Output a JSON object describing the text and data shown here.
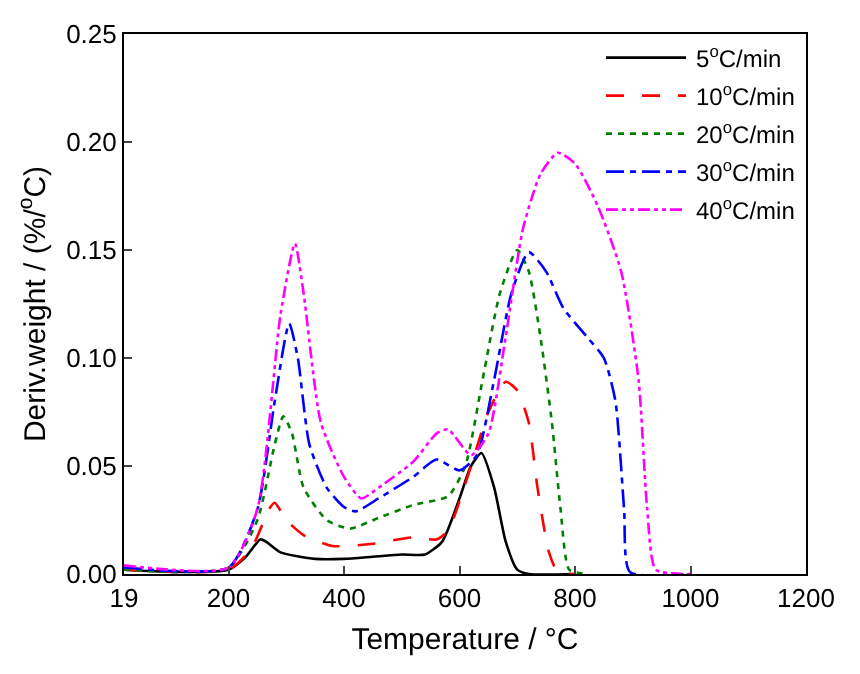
{
  "chart_data": {
    "type": "line",
    "xlabel": "Temperature / °C",
    "ylabel": "Deriv.weight / (%/$^{o}$C)",
    "xlim": [
      19,
      1200
    ],
    "xticks": [
      19,
      200,
      400,
      600,
      800,
      1000,
      1200
    ],
    "ylim": [
      0,
      0.25
    ],
    "yticks": [
      {
        "value": 0,
        "label": "0.00"
      },
      {
        "value": 0.05,
        "label": "0.05"
      },
      {
        "value": 0.1,
        "label": "0.10"
      },
      {
        "value": 0.15,
        "label": "0.15"
      },
      {
        "value": 0.2,
        "label": "0.20"
      },
      {
        "value": 0.25,
        "label": "0.25"
      }
    ],
    "legend": "top right",
    "marker": "none",
    "series": [
      {
        "name": "5$^{o}$C/min",
        "color": "#000000",
        "line_style": "solid",
        "x": [
          19,
          100,
          200,
          230,
          255,
          265,
          290,
          350,
          400,
          450,
          500,
          540,
          570,
          600,
          620,
          638,
          660,
          680,
          700,
          720,
          800
        ],
        "values": [
          0.002,
          0.001,
          0.002,
          0.008,
          0.016,
          0.015,
          0.01,
          0.007,
          0.007,
          0.008,
          0.009,
          0.009,
          0.015,
          0.035,
          0.05,
          0.056,
          0.04,
          0.015,
          0.002,
          0,
          0
        ]
      },
      {
        "name": "10$^{o}$C/min",
        "color": "#ff0000",
        "line_style": "dashed",
        "x": [
          19,
          200,
          240,
          270,
          280,
          300,
          330,
          380,
          450,
          520,
          560,
          580,
          620,
          650,
          680,
          700,
          720,
          735,
          755,
          770,
          800
        ],
        "values": [
          0.002,
          0.002,
          0.012,
          0.03,
          0.033,
          0.025,
          0.018,
          0.013,
          0.014,
          0.017,
          0.016,
          0.02,
          0.05,
          0.075,
          0.089,
          0.085,
          0.07,
          0.04,
          0.01,
          0.001,
          0
        ]
      },
      {
        "name": "20$^{o}$C/min",
        "color": "#008000",
        "line_style": "dotted",
        "x": [
          19,
          200,
          250,
          280,
          295,
          310,
          330,
          370,
          410,
          460,
          520,
          580,
          610,
          640,
          670,
          700,
          720,
          740,
          760,
          775,
          790,
          820
        ],
        "values": [
          0.002,
          0.003,
          0.025,
          0.06,
          0.073,
          0.065,
          0.04,
          0.025,
          0.021,
          0.026,
          0.032,
          0.036,
          0.05,
          0.09,
          0.13,
          0.15,
          0.14,
          0.11,
          0.07,
          0.03,
          0.002,
          0
        ]
      },
      {
        "name": "30$^{o}$C/min",
        "color": "#0000ff",
        "line_style": "dashdot",
        "x": [
          19,
          200,
          250,
          280,
          305,
          320,
          340,
          370,
          400,
          420,
          460,
          520,
          560,
          600,
          630,
          660,
          690,
          720,
          750,
          780,
          820,
          850,
          870,
          885,
          895,
          1000
        ],
        "values": [
          0.003,
          0.003,
          0.03,
          0.08,
          0.116,
          0.1,
          0.06,
          0.04,
          0.031,
          0.029,
          0.035,
          0.045,
          0.053,
          0.048,
          0.055,
          0.09,
          0.13,
          0.149,
          0.14,
          0.123,
          0.11,
          0.1,
          0.08,
          0.03,
          0.001,
          0
        ]
      },
      {
        "name": "40$^{o}$C/min",
        "color": "#ff00ff",
        "line_style": "dashdotdot",
        "x": [
          19,
          200,
          250,
          290,
          315,
          330,
          360,
          400,
          430,
          460,
          520,
          560,
          580,
          620,
          650,
          680,
          710,
          740,
          770,
          800,
          840,
          880,
          910,
          925,
          940,
          1000
        ],
        "values": [
          0.004,
          0.003,
          0.03,
          0.12,
          0.153,
          0.13,
          0.07,
          0.045,
          0.035,
          0.04,
          0.052,
          0.065,
          0.067,
          0.055,
          0.065,
          0.11,
          0.16,
          0.185,
          0.195,
          0.19,
          0.17,
          0.14,
          0.09,
          0.03,
          0.002,
          0
        ]
      }
    ]
  }
}
